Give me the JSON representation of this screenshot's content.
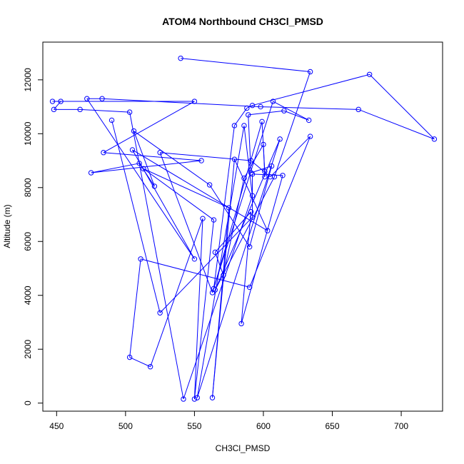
{
  "chart_data": {
    "type": "line",
    "title": "ATOM4 Northbound CH3Cl_PMSD",
    "xlabel": "CH3Cl_PMSD",
    "ylabel": "Altitude (m)",
    "xlim": [
      440,
      730
    ],
    "ylim": [
      -300,
      13400
    ],
    "xticks": [
      450,
      500,
      550,
      600,
      650,
      700
    ],
    "yticks": [
      0,
      2000,
      4000,
      6000,
      8000,
      10000,
      12000
    ],
    "series": [
      {
        "color": "#0000ff",
        "marker": "open-circle",
        "points": [
          {
            "x": 540,
            "y": 12800
          },
          {
            "x": 634,
            "y": 12300
          },
          {
            "x": 608,
            "y": 8400
          },
          {
            "x": 565,
            "y": 4200
          },
          {
            "x": 612,
            "y": 9800
          },
          {
            "x": 552,
            "y": 200
          },
          {
            "x": 586,
            "y": 10300
          },
          {
            "x": 592,
            "y": 7700
          },
          {
            "x": 542,
            "y": 150
          },
          {
            "x": 503,
            "y": 10800
          },
          {
            "x": 467,
            "y": 10900
          },
          {
            "x": 448,
            "y": 10900
          },
          {
            "x": 453,
            "y": 11200
          },
          {
            "x": 447,
            "y": 11200
          },
          {
            "x": 550,
            "y": 11200
          },
          {
            "x": 484,
            "y": 9300
          },
          {
            "x": 555,
            "y": 9000
          },
          {
            "x": 475,
            "y": 8550
          },
          {
            "x": 510,
            "y": 8900
          },
          {
            "x": 521,
            "y": 8050
          },
          {
            "x": 506,
            "y": 10100
          },
          {
            "x": 561,
            "y": 8100
          },
          {
            "x": 590,
            "y": 5800
          },
          {
            "x": 606,
            "y": 8800
          },
          {
            "x": 591,
            "y": 8550
          },
          {
            "x": 589,
            "y": 10700
          },
          {
            "x": 615,
            "y": 10850
          },
          {
            "x": 633,
            "y": 10500
          },
          {
            "x": 607,
            "y": 11200
          },
          {
            "x": 563,
            "y": 4100
          },
          {
            "x": 525,
            "y": 9300
          },
          {
            "x": 591,
            "y": 9000
          },
          {
            "x": 605,
            "y": 8400
          },
          {
            "x": 634,
            "y": 9900
          },
          {
            "x": 590,
            "y": 4300
          },
          {
            "x": 511,
            "y": 5350
          },
          {
            "x": 503,
            "y": 1700
          },
          {
            "x": 518,
            "y": 1350
          },
          {
            "x": 556,
            "y": 6850
          },
          {
            "x": 550,
            "y": 150
          },
          {
            "x": 564,
            "y": 6800
          },
          {
            "x": 513,
            "y": 8700
          },
          {
            "x": 575,
            "y": 7250
          },
          {
            "x": 563,
            "y": 200
          },
          {
            "x": 579,
            "y": 9050
          },
          {
            "x": 603,
            "y": 6400
          },
          {
            "x": 505,
            "y": 9400
          },
          {
            "x": 550,
            "y": 5350
          },
          {
            "x": 472,
            "y": 11300
          },
          {
            "x": 483,
            "y": 11300
          },
          {
            "x": 598,
            "y": 11000
          },
          {
            "x": 669,
            "y": 10900
          },
          {
            "x": 724,
            "y": 9800
          },
          {
            "x": 677,
            "y": 12200
          },
          {
            "x": 592,
            "y": 11050
          },
          {
            "x": 588,
            "y": 10950
          },
          {
            "x": 579,
            "y": 10300
          },
          {
            "x": 564,
            "y": 4250
          },
          {
            "x": 599,
            "y": 10450
          },
          {
            "x": 601,
            "y": 8600
          },
          {
            "x": 601,
            "y": 8400
          },
          {
            "x": 600,
            "y": 9600
          },
          {
            "x": 586,
            "y": 8350
          },
          {
            "x": 571,
            "y": 4750
          },
          {
            "x": 565,
            "y": 5600
          },
          {
            "x": 591,
            "y": 7100
          },
          {
            "x": 584,
            "y": 2950
          },
          {
            "x": 614,
            "y": 8450
          },
          {
            "x": 592,
            "y": 8500
          },
          {
            "x": 592,
            "y": 6900
          },
          {
            "x": 525,
            "y": 3350
          },
          {
            "x": 490,
            "y": 10500
          }
        ]
      }
    ]
  }
}
